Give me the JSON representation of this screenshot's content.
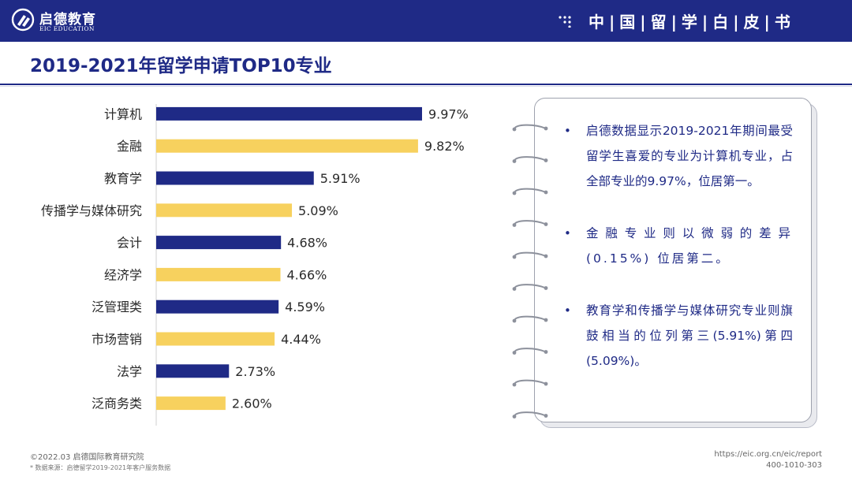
{
  "header": {
    "logo_cn": "启德教育",
    "logo_en": "EIC EDUCATION",
    "series_title": "中|国|留|学|白|皮|书",
    "brand_color": "#1f2a86"
  },
  "page": {
    "title": "2019-2021年留学申请TOP10专业"
  },
  "chart_data": {
    "type": "bar",
    "orientation": "horizontal",
    "categories": [
      "计算机",
      "金融",
      "教育学",
      "传播学与媒体研究",
      "会计",
      "经济学",
      "泛管理类",
      "市场营销",
      "法学",
      "泛商务类"
    ],
    "values": [
      9.97,
      9.82,
      5.91,
      5.09,
      4.68,
      4.66,
      4.59,
      4.44,
      2.73,
      2.6
    ],
    "value_labels": [
      "9.97%",
      "9.82%",
      "5.91%",
      "5.09%",
      "4.68%",
      "4.66%",
      "4.59%",
      "4.44%",
      "2.73%",
      "2.60%"
    ],
    "colors": [
      "#1f2a86",
      "#f7d15e",
      "#1f2a86",
      "#f7d15e",
      "#1f2a86",
      "#f7d15e",
      "#1f2a86",
      "#f7d15e",
      "#1f2a86",
      "#f7d15e"
    ],
    "unit": "%",
    "xlim": [
      0,
      10
    ],
    "grid": false,
    "legend": "none"
  },
  "notes": {
    "bullet_char": "•",
    "items": [
      "启德数据显示2019-2021年期间最受留学生喜爱的专业为计算机专业，占全部专业的9.97%，位居第一。",
      "金融专业则以微弱的差异(0.15%) 位居第二。",
      "教育学和传播学与媒体研究专业则旗鼓相当的位列第三(5.91%)第四(5.09%)。"
    ]
  },
  "footer": {
    "copyright": "©2022.03 启德国际教育研究院",
    "source": "* 数据来源：启德留学2019-2021年客户服务数据",
    "url": "https://eic.org.cn/eic/report",
    "phone": "400-1010-303"
  }
}
